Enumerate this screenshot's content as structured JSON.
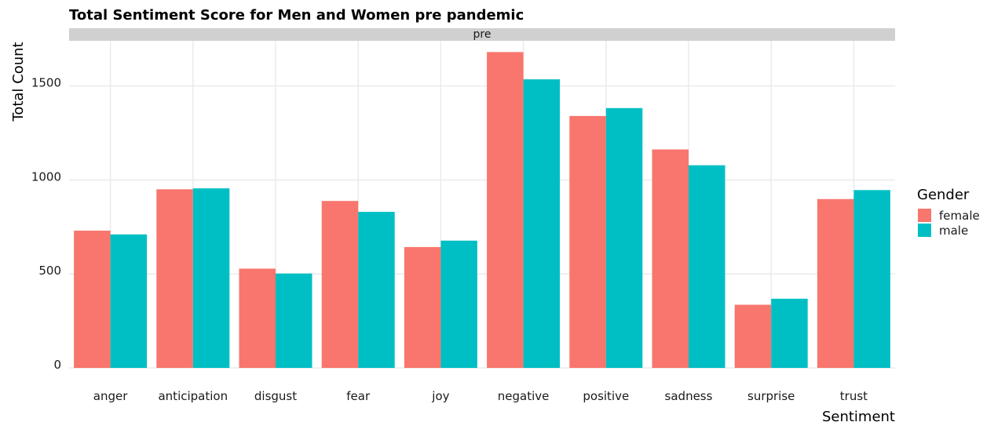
{
  "chart_data": {
    "type": "bar",
    "title": "Total Sentiment Score for Men and Women pre pandemic",
    "facet": "pre",
    "xlabel": "Sentiment",
    "ylabel": "Total Count",
    "categories": [
      "anger",
      "anticipation",
      "disgust",
      "fear",
      "joy",
      "negative",
      "positive",
      "sadness",
      "surprise",
      "trust"
    ],
    "series": [
      {
        "name": "female",
        "color": "#F8766D",
        "values": [
          730,
          950,
          528,
          888,
          643,
          1680,
          1340,
          1162,
          336,
          898
        ]
      },
      {
        "name": "male",
        "color": "#00BFC4",
        "values": [
          710,
          955,
          502,
          830,
          677,
          1535,
          1382,
          1078,
          368,
          946
        ]
      }
    ],
    "ylim": [
      0,
      1740
    ],
    "yticks": [
      0,
      500,
      1000,
      1500
    ],
    "legend": {
      "title": "Gender",
      "position": "right"
    },
    "grid": true
  }
}
